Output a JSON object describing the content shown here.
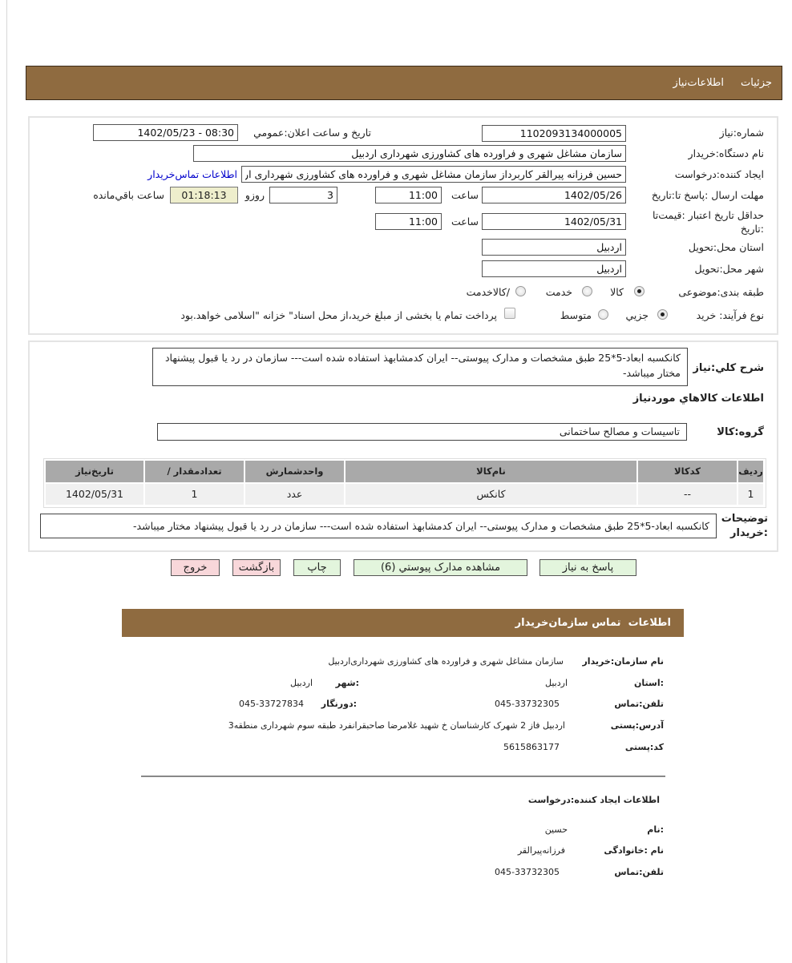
{
  "header": {
    "tabs": [
      "جزئيات",
      "اطلاعات‌نياز"
    ]
  },
  "need": {
    "number_label": "شماره:نياز",
    "number": "1102093134000005",
    "announce_label": "تاريخ و ساعت اعلان:عمومي",
    "announce": "1402/05/23 - 08:30",
    "buyer_label": "نام دستگاه:خريدار",
    "buyer": "سازمان مشاغل شهری و فراورده های کشاورزی شهرداری اردبیل",
    "creator_label": "ايجاد کننده:درخواست",
    "creator": "حسين فرزانه پيرالقر کاربرداز سازمان مشاغل شهری و فراورده های کشاورزی شهرداری اردبیل",
    "contact_link": "اطلاعات تماس‌خريدار",
    "deadline_label": "مهلت ارسال :پاسخ تا:تاريخ",
    "deadline_date": "1402/05/26",
    "time_label": "ساعت",
    "deadline_time": "11:00",
    "days": "3",
    "days_label": "روزو",
    "countdown": "01:18:13",
    "remaining_label": "ساعت باقي‌مانده",
    "validity_label_1": "حداقل تاريخ اعتبار :قيمت‌تا",
    "validity_label_2": ":تاريخ",
    "validity_date": "1402/05/31",
    "validity_time": "11:00",
    "province_label": "استان محل:تحويل",
    "province": "اردبيل",
    "city_label": "شهر محل:تحويل",
    "city": "اردبيل",
    "category_label": "طبقه بندی:موضوعی",
    "category_options": [
      "کالا",
      "خدمت",
      "/کالاخدمت"
    ],
    "category_selected": "کالا",
    "process_label": "نوع فرآيند: خريد",
    "process_options": [
      "جزيي",
      "متوسط"
    ],
    "process_selected": "جزيي",
    "treasury_text": "پرداخت تمام يا بخشی از مبلغ خريد،از محل اسناد\" خزانه \"اسلامی خواهد.بود",
    "treasury_checked": false
  },
  "details": {
    "desc_label": "شرح کلي:نياز",
    "desc": "کانکسبه ابعاد-5*25 طبق مشخصات و مدارک پیوستی-- ایران کدمشابهذ استفاده شده است--- سازمان در رد یا قبول پیشنهاد مختار میباشد-",
    "goods_title": "اطلاعات کالاهاي موردنياز",
    "group_label": "گروه:کالا",
    "group": "تاسیسات و مصالح ساختمانی",
    "table": {
      "headers": [
        "رديف",
        "کدکالا",
        "نام‌کالا",
        "واحدشمارش",
        "/ تعدادمقدار",
        "تاريخ‌نياز"
      ],
      "rows": [
        [
          "1",
          "--",
          "کانکس",
          "عدد",
          "1",
          "1402/05/31"
        ]
      ]
    },
    "buyer_notes_label_1": "توضيحات",
    "buyer_notes_label_2": ":خريدار",
    "buyer_notes": "کانکسبه ابعاد-5*25 طبق مشخصات و مدارک پیوستی-- ایران کدمشابهذ استفاده شده است--- سازمان در رد یا قبول پیشنهاد مختار میباشد-"
  },
  "buttons": {
    "reply": "پاسخ به نياز",
    "attachments": "مشاهده مدارک پيوستي (6)",
    "print": "چاپ",
    "back": "بازگشت",
    "exit": "خروج"
  },
  "contact": {
    "title": "اطلاعات  تماس سازمان‌خريدار",
    "org_label": "نام سازمان:خريدار",
    "org": "سازمان مشاغل شهری و فراورده های کشاورزی شهرداری‌اردبیل",
    "province_label": ":استان",
    "province": "اردبيل",
    "city_label": ":شهر",
    "city": "اردبيل",
    "phone_label": "تلفن:تماس",
    "phone": "045-33732305",
    "fax_label": ":دورنگار",
    "fax": "045-33727834",
    "address_label": "آدرس:پستی",
    "address": "اردبیل فاز 2 شهرک کارشناسان خ شهید غلامرضا صاحبقرانفرد طبقه سوم شهرداری منطقه3",
    "postal_label": "کد:پستی",
    "postal": "5615863177",
    "creator_title": "اطلاعات ایجاد کننده:درخواست",
    "name_label": ":نام",
    "name": "حسین",
    "family_label": "نام :خانوادگی",
    "family": "فرزانه‌پیرالقر",
    "creator_phone_label": "تلفن:تماس",
    "creator_phone": "045-33732305"
  },
  "colors": {
    "header": "#8f6b40",
    "countdown_bg": "#eeeecc",
    "green_button": "#e3f5dd",
    "pink_button": "#f8d7da",
    "link": "#0000cc"
  }
}
